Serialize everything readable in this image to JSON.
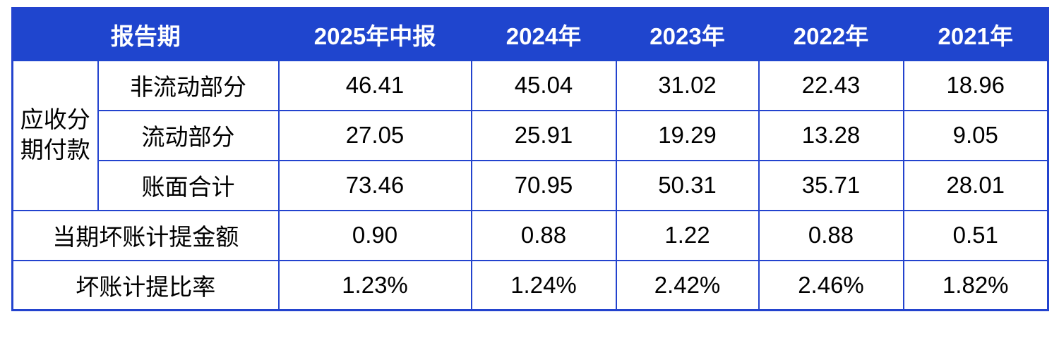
{
  "colors": {
    "header_bg": "#1F45CE",
    "border": "#2343CE",
    "header_text": "#FFFFFF",
    "body_text": "#000000"
  },
  "table": {
    "header": {
      "report_period_label": "报告期",
      "periods": [
        "2025年中报",
        "2024年",
        "2023年",
        "2022年",
        "2021年"
      ]
    },
    "group_label": "应收分期付款",
    "rows": [
      {
        "label": "非流动部分",
        "values": [
          "46.41",
          "45.04",
          "31.02",
          "22.43",
          "18.96"
        ]
      },
      {
        "label": "流动部分",
        "values": [
          "27.05",
          "25.91",
          "19.29",
          "13.28",
          "9.05"
        ]
      },
      {
        "label": "账面合计",
        "values": [
          "73.46",
          "70.95",
          "50.31",
          "35.71",
          "28.01"
        ]
      },
      {
        "label": "当期坏账计提金额",
        "values": [
          "0.90",
          "0.88",
          "1.22",
          "0.88",
          "0.51"
        ]
      },
      {
        "label": "坏账计提比率",
        "values": [
          "1.23%",
          "1.24%",
          "2.42%",
          "2.46%",
          "1.82%"
        ]
      }
    ]
  },
  "chart_data": {
    "type": "table",
    "title": "",
    "columns": [
      "报告期",
      "2025年中报",
      "2024年",
      "2023年",
      "2022年",
      "2021年"
    ],
    "rows": [
      {
        "group": "应收分期付款",
        "label": "非流动部分",
        "values": [
          46.41,
          45.04,
          31.02,
          22.43,
          18.96
        ]
      },
      {
        "group": "应收分期付款",
        "label": "流动部分",
        "values": [
          27.05,
          25.91,
          19.29,
          13.28,
          9.05
        ]
      },
      {
        "group": "应收分期付款",
        "label": "账面合计",
        "values": [
          73.46,
          70.95,
          50.31,
          35.71,
          28.01
        ]
      },
      {
        "group": "",
        "label": "当期坏账计提金额",
        "values": [
          0.9,
          0.88,
          1.22,
          0.88,
          0.51
        ]
      },
      {
        "group": "",
        "label": "坏账计提比率",
        "values": [
          "1.23%",
          "1.24%",
          "2.42%",
          "2.46%",
          "1.82%"
        ]
      }
    ],
    "legend_position": "none",
    "grid": "on"
  }
}
